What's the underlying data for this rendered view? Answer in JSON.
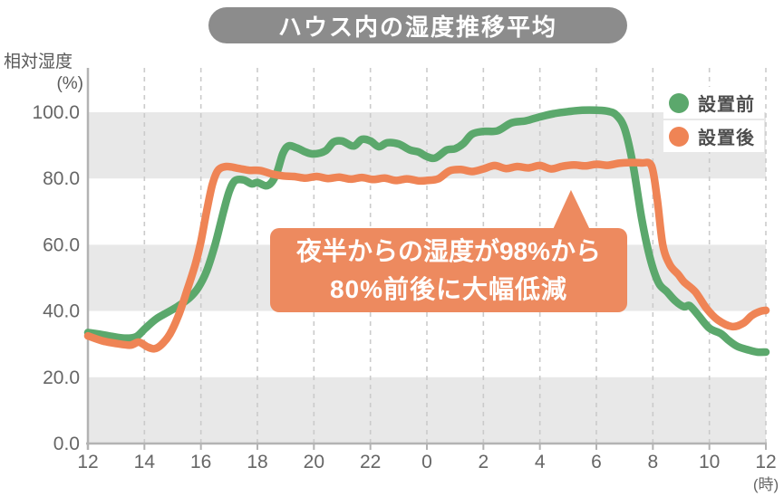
{
  "title": "ハウス内の湿度推移平均",
  "y_axis": {
    "title": "相対湿度",
    "unit": "(%)"
  },
  "x_axis": {
    "unit": "(時)"
  },
  "legend": [
    {
      "label": "設置前",
      "color": "#5BA86C"
    },
    {
      "label": "設置後",
      "color": "#EF8455"
    }
  ],
  "annotation": {
    "line1": "夜半からの湿度が98%から",
    "line2": "80%前後に大幅低減",
    "bg_color": "#ED8A5F",
    "pointer_tip_hour": 17.1,
    "pointer_tip_value": 79
  },
  "colors": {
    "band_gray": "#E8E8E8",
    "axis": "#B3B3B3",
    "grid": "#CBCBCB",
    "tick_text": "#666666",
    "title_pill": "#8C8C8C"
  },
  "chart_data": {
    "type": "line",
    "title": "ハウス内の湿度推移平均",
    "ylabel": "相対湿度 (%)",
    "xlabel": "時",
    "ylim": [
      0,
      100
    ],
    "x_span_hours": 24,
    "x_ticks": [
      "12",
      "14",
      "16",
      "18",
      "20",
      "22",
      "0",
      "2",
      "4",
      "6",
      "8",
      "10",
      "12"
    ],
    "y_ticks": [
      "100.0",
      "80.0",
      "60.0",
      "40.0",
      "20.0",
      "0.0"
    ],
    "y_tick_values": [
      100,
      80,
      60,
      40,
      20,
      0
    ],
    "shaded_bands": [
      [
        0,
        20
      ],
      [
        40,
        60
      ],
      [
        80,
        100
      ]
    ],
    "grid": "dashed-vertical",
    "legend_position": "top-right",
    "series": [
      {
        "name": "設置前",
        "color": "#5BA86C",
        "points": [
          [
            0,
            33.5
          ],
          [
            0.4,
            33
          ],
          [
            0.8,
            32.4
          ],
          [
            1.3,
            31.8
          ],
          [
            1.7,
            32.2
          ],
          [
            2,
            34.5
          ],
          [
            2.4,
            37.5
          ],
          [
            2.8,
            39.5
          ],
          [
            3.2,
            41.5
          ],
          [
            3.6,
            44
          ],
          [
            3.9,
            47
          ],
          [
            4.2,
            52
          ],
          [
            4.5,
            60
          ],
          [
            4.8,
            70
          ],
          [
            5,
            76
          ],
          [
            5.2,
            79.3
          ],
          [
            5.5,
            79.6
          ],
          [
            5.8,
            78.4
          ],
          [
            6,
            78.8
          ],
          [
            6.3,
            77.8
          ],
          [
            6.5,
            78.8
          ],
          [
            6.7,
            82
          ],
          [
            6.9,
            87.5
          ],
          [
            7.1,
            89.8
          ],
          [
            7.4,
            89.2
          ],
          [
            7.7,
            88
          ],
          [
            8,
            87.4
          ],
          [
            8.4,
            88.3
          ],
          [
            8.7,
            91
          ],
          [
            9,
            91.3
          ],
          [
            9.4,
            89.8
          ],
          [
            9.7,
            91.8
          ],
          [
            10,
            91.3
          ],
          [
            10.3,
            89.6
          ],
          [
            10.6,
            90.8
          ],
          [
            11,
            90.4
          ],
          [
            11.4,
            88.6
          ],
          [
            11.7,
            88
          ],
          [
            12,
            86.6
          ],
          [
            12.3,
            86.2
          ],
          [
            12.7,
            88.6
          ],
          [
            13,
            89
          ],
          [
            13.3,
            90.6
          ],
          [
            13.6,
            93.4
          ],
          [
            14,
            94.2
          ],
          [
            14.5,
            94.4
          ],
          [
            15,
            96.8
          ],
          [
            15.5,
            97.4
          ],
          [
            16,
            98.6
          ],
          [
            16.5,
            99.6
          ],
          [
            17,
            100.2
          ],
          [
            17.5,
            100.6
          ],
          [
            18,
            100.6
          ],
          [
            18.4,
            100.3
          ],
          [
            18.7,
            99.2
          ],
          [
            19,
            95
          ],
          [
            19.3,
            84
          ],
          [
            19.6,
            68
          ],
          [
            19.9,
            56
          ],
          [
            20.2,
            48.5
          ],
          [
            20.5,
            45.8
          ],
          [
            20.8,
            43
          ],
          [
            21.1,
            41.3
          ],
          [
            21.3,
            41.6
          ],
          [
            21.6,
            38.8
          ],
          [
            22,
            34.8
          ],
          [
            22.4,
            33.2
          ],
          [
            22.7,
            31
          ],
          [
            23,
            29.3
          ],
          [
            23.4,
            28.2
          ],
          [
            23.7,
            27.6
          ],
          [
            24,
            27.6
          ]
        ]
      },
      {
        "name": "設置後",
        "color": "#EF8455",
        "points": [
          [
            0,
            32.5
          ],
          [
            0.5,
            31
          ],
          [
            1,
            30.2
          ],
          [
            1.5,
            29.7
          ],
          [
            1.8,
            30.6
          ],
          [
            2.1,
            29.2
          ],
          [
            2.35,
            28.6
          ],
          [
            2.6,
            29.8
          ],
          [
            2.9,
            33
          ],
          [
            3.2,
            38.5
          ],
          [
            3.5,
            46
          ],
          [
            3.8,
            54
          ],
          [
            4,
            61
          ],
          [
            4.2,
            70
          ],
          [
            4.4,
            78
          ],
          [
            4.6,
            82.4
          ],
          [
            4.9,
            83.6
          ],
          [
            5.3,
            83.1
          ],
          [
            5.7,
            82.5
          ],
          [
            6.1,
            82.4
          ],
          [
            6.5,
            81.4
          ],
          [
            6.9,
            80.8
          ],
          [
            7.3,
            80.6
          ],
          [
            7.7,
            80.1
          ],
          [
            8.1,
            80.6
          ],
          [
            8.5,
            80
          ],
          [
            8.9,
            80.4
          ],
          [
            9.3,
            79.8
          ],
          [
            9.7,
            80.3
          ],
          [
            10.1,
            79.7
          ],
          [
            10.5,
            80.1
          ],
          [
            10.9,
            79.4
          ],
          [
            11.3,
            79.9
          ],
          [
            11.7,
            79.3
          ],
          [
            12,
            79.4
          ],
          [
            12.4,
            79.9
          ],
          [
            12.8,
            82.3
          ],
          [
            13.2,
            82.7
          ],
          [
            13.6,
            82.1
          ],
          [
            14,
            82.9
          ],
          [
            14.4,
            83.9
          ],
          [
            14.8,
            83
          ],
          [
            15.2,
            83.6
          ],
          [
            15.6,
            83.2
          ],
          [
            16,
            83.9
          ],
          [
            16.4,
            82.9
          ],
          [
            16.8,
            83.7
          ],
          [
            17.2,
            84.1
          ],
          [
            17.6,
            83.8
          ],
          [
            18,
            84.3
          ],
          [
            18.4,
            84
          ],
          [
            18.8,
            84.6
          ],
          [
            19.2,
            84.8
          ],
          [
            19.6,
            84.7
          ],
          [
            19.95,
            83.8
          ],
          [
            20.15,
            74
          ],
          [
            20.35,
            60
          ],
          [
            20.6,
            54
          ],
          [
            20.9,
            51
          ],
          [
            21.1,
            48.8
          ],
          [
            21.5,
            45.8
          ],
          [
            21.9,
            40.8
          ],
          [
            22.3,
            37.3
          ],
          [
            22.8,
            35.3
          ],
          [
            23.2,
            36.3
          ],
          [
            23.5,
            38.6
          ],
          [
            23.8,
            39.9
          ],
          [
            24,
            40.2
          ]
        ]
      }
    ]
  }
}
